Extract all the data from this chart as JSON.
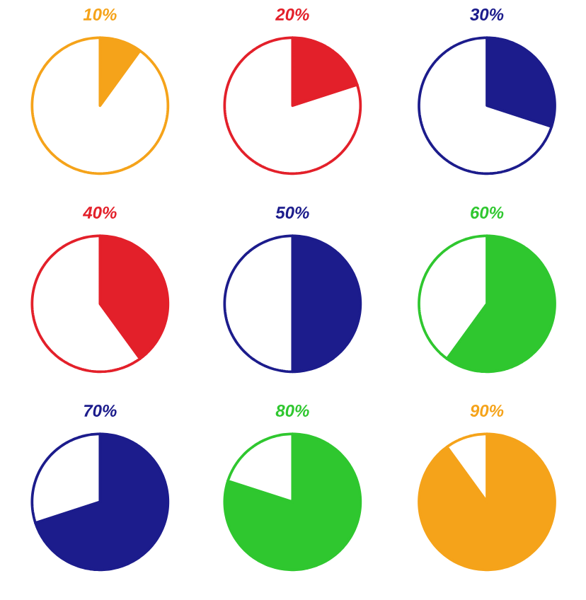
{
  "chart_data": [
    {
      "type": "pie",
      "title": "10%",
      "categories": [
        null,
        null
      ],
      "values": [
        10,
        90
      ],
      "colors": [
        "#f5a31a",
        "#ffffff"
      ]
    },
    {
      "type": "pie",
      "title": "20%",
      "categories": [
        null,
        null
      ],
      "values": [
        20,
        80
      ],
      "colors": [
        "#e3202a",
        "#ffffff"
      ]
    },
    {
      "type": "pie",
      "title": "30%",
      "categories": [
        null,
        null
      ],
      "values": [
        30,
        70
      ],
      "colors": [
        "#1c1c8c",
        "#ffffff"
      ]
    },
    {
      "type": "pie",
      "title": "40%",
      "categories": [
        null,
        null
      ],
      "values": [
        40,
        60
      ],
      "colors": [
        "#e3202a",
        "#ffffff"
      ]
    },
    {
      "type": "pie",
      "title": "50%",
      "categories": [
        null,
        null
      ],
      "values": [
        50,
        50
      ],
      "colors": [
        "#1c1c8c",
        "#ffffff"
      ]
    },
    {
      "type": "pie",
      "title": "60%",
      "categories": [
        null,
        null
      ],
      "values": [
        60,
        40
      ],
      "colors": [
        "#2fc72f",
        "#ffffff"
      ]
    },
    {
      "type": "pie",
      "title": "70%",
      "categories": [
        null,
        null
      ],
      "values": [
        70,
        30
      ],
      "colors": [
        "#1c1c8c",
        "#ffffff"
      ]
    },
    {
      "type": "pie",
      "title": "80%",
      "categories": [
        null,
        null
      ],
      "values": [
        80,
        20
      ],
      "colors": [
        "#2fc72f",
        "#ffffff"
      ]
    },
    {
      "type": "pie",
      "title": "90%",
      "categories": [
        null,
        null
      ],
      "values": [
        90,
        10
      ],
      "colors": [
        "#f5a31a",
        "#ffffff"
      ]
    }
  ]
}
